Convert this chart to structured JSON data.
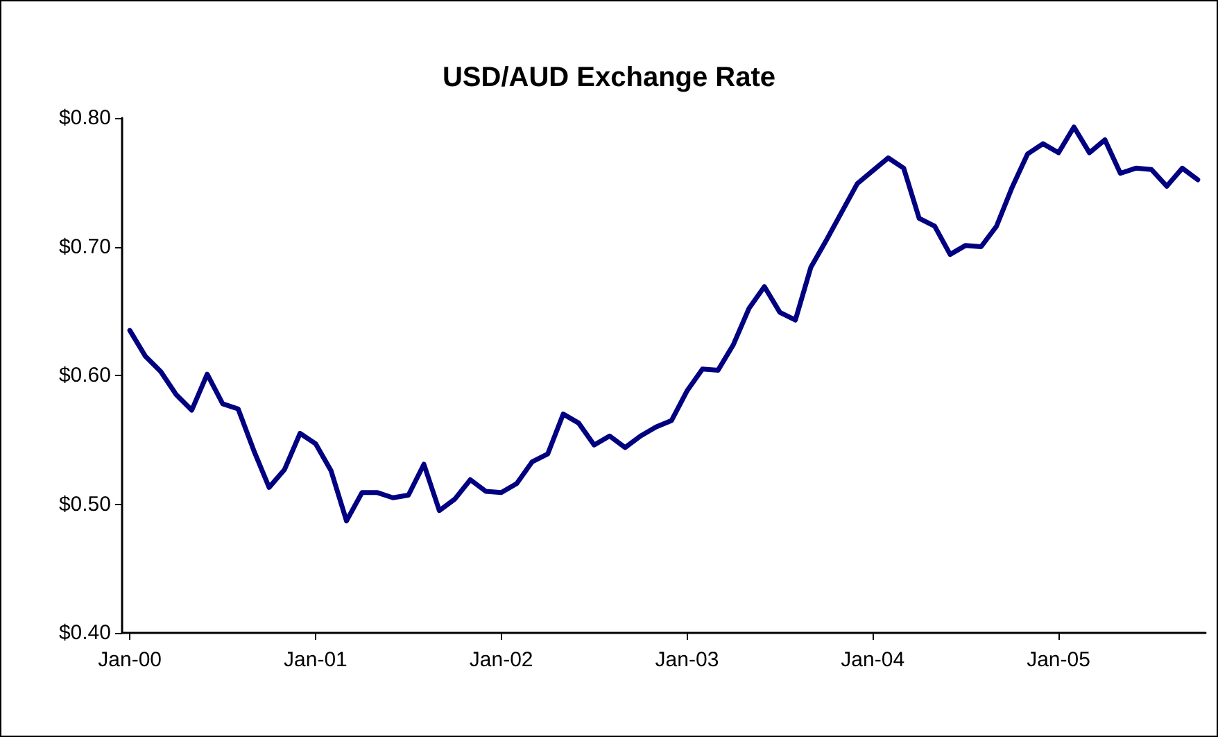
{
  "chart_data": {
    "type": "line",
    "title": "USD/AUD Exchange Rate",
    "categories": [
      "Jan-00",
      null,
      null,
      null,
      null,
      null,
      null,
      null,
      null,
      null,
      null,
      null,
      "Jan-01",
      null,
      null,
      null,
      null,
      null,
      null,
      null,
      null,
      null,
      null,
      null,
      "Jan-02",
      null,
      null,
      null,
      null,
      null,
      null,
      null,
      null,
      null,
      null,
      null,
      "Jan-03",
      null,
      null,
      null,
      null,
      null,
      null,
      null,
      null,
      null,
      null,
      null,
      "Jan-04",
      null,
      null,
      null,
      null,
      null,
      null,
      null,
      null,
      null,
      null,
      null,
      "Jan-05",
      null,
      null,
      null,
      null,
      null,
      null,
      null,
      null,
      null
    ],
    "series": [
      {
        "color": "#000080",
        "values": [
          0.635,
          0.615,
          0.603,
          0.585,
          0.573,
          0.601,
          0.578,
          0.574,
          0.542,
          0.513,
          0.527,
          0.555,
          0.547,
          0.526,
          0.487,
          0.509,
          0.509,
          0.505,
          0.507,
          0.531,
          0.495,
          0.504,
          0.519,
          0.51,
          0.509,
          0.516,
          0.533,
          0.539,
          0.57,
          0.563,
          0.546,
          0.553,
          0.544,
          0.553,
          0.56,
          0.565,
          0.588,
          0.605,
          0.604,
          0.624,
          0.652,
          0.669,
          0.649,
          0.643,
          0.684,
          0.705,
          0.727,
          0.749,
          0.759,
          0.769,
          0.761,
          0.722,
          0.716,
          0.694,
          0.701,
          0.7,
          0.716,
          0.746,
          0.772,
          0.78,
          0.773,
          0.793,
          0.773,
          0.783,
          0.757,
          0.761,
          0.76,
          0.747,
          0.761,
          0.752
        ]
      }
    ],
    "ylim": [
      0.4,
      0.8
    ],
    "yticks": [
      {
        "value": 0.4,
        "label": "$0.40"
      },
      {
        "value": 0.5,
        "label": "$0.50"
      },
      {
        "value": 0.6,
        "label": "$0.60"
      },
      {
        "value": 0.7,
        "label": "$0.70"
      },
      {
        "value": 0.8,
        "label": "$0.80"
      }
    ],
    "grid": false,
    "marker": "none",
    "line_style": "solid"
  }
}
